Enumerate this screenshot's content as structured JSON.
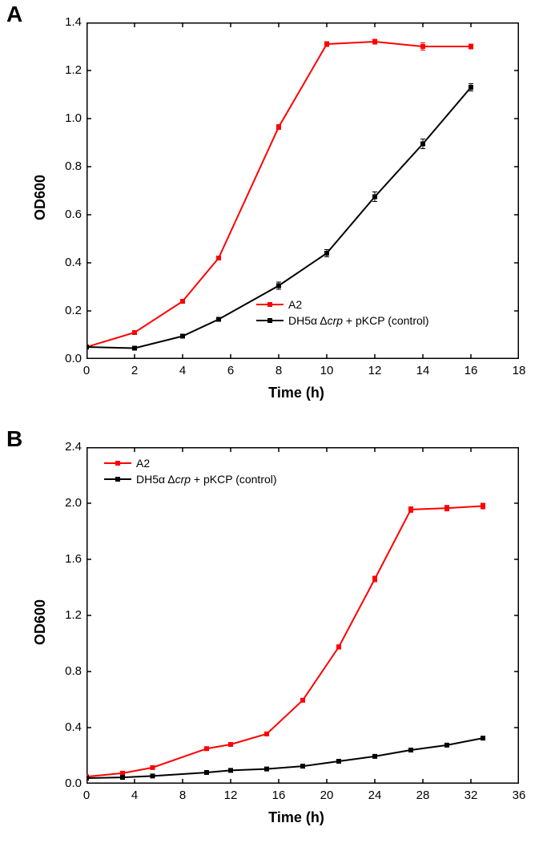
{
  "panelA": {
    "label": "A",
    "type": "line",
    "background_color": "#ffffff",
    "axis_color": "#000000",
    "axis_width": 1.5,
    "tick_length": 6,
    "tick_fontsize": 15,
    "label_fontsize": 18,
    "label_fontweight": "bold",
    "xlabel": "Time (h)",
    "ylabel": "OD600",
    "xlim": [
      0,
      18
    ],
    "ylim": [
      0.0,
      1.4
    ],
    "xticks": [
      0,
      2,
      4,
      6,
      8,
      10,
      12,
      14,
      16,
      18
    ],
    "yticks": [
      0.0,
      0.2,
      0.4,
      0.6,
      0.8,
      1.0,
      1.2,
      1.4
    ],
    "legend_position": "lower-right-inside",
    "series": [
      {
        "name": "A2",
        "label": "A2",
        "color": "#ff0000",
        "line_width": 2,
        "marker": "square",
        "marker_size": 6,
        "error_bar_color": "#ff0000",
        "x": [
          0,
          2,
          4,
          5.5,
          8,
          10,
          12,
          14,
          16
        ],
        "y": [
          0.05,
          0.11,
          0.24,
          0.42,
          0.965,
          1.31,
          1.32,
          1.3,
          1.3
        ],
        "yerr": [
          0.005,
          0.005,
          0.005,
          0.005,
          0.01,
          0.01,
          0.01,
          0.015,
          0.01
        ]
      },
      {
        "name": "control",
        "label": "DH5α Δcrp + pKCP (control)",
        "label_html": "DH5α Δ<i>crp</i> + pKCP (control)",
        "color": "#000000",
        "line_width": 2,
        "marker": "square",
        "marker_size": 6,
        "error_bar_color": "#000000",
        "x": [
          0,
          2,
          4,
          5.5,
          8,
          10,
          12,
          14,
          16
        ],
        "y": [
          0.05,
          0.045,
          0.095,
          0.165,
          0.305,
          0.44,
          0.675,
          0.895,
          1.13
        ],
        "yerr": [
          0.005,
          0.005,
          0.005,
          0.005,
          0.015,
          0.015,
          0.02,
          0.02,
          0.015
        ]
      }
    ]
  },
  "panelB": {
    "label": "B",
    "type": "line",
    "background_color": "#ffffff",
    "axis_color": "#000000",
    "axis_width": 1.5,
    "tick_length": 6,
    "tick_fontsize": 15,
    "label_fontsize": 18,
    "label_fontweight": "bold",
    "xlabel": "Time (h)",
    "ylabel": "OD600",
    "xlim": [
      0,
      36
    ],
    "ylim": [
      0.0,
      2.4
    ],
    "xticks": [
      0,
      4,
      8,
      12,
      16,
      20,
      24,
      28,
      32,
      36
    ],
    "yticks": [
      0.0,
      0.4,
      0.8,
      1.2,
      1.6,
      2.0,
      2.4
    ],
    "legend_position": "upper-left-inside",
    "series": [
      {
        "name": "A2",
        "label": "A2",
        "color": "#ff0000",
        "line_width": 2,
        "marker": "square",
        "marker_size": 6,
        "error_bar_color": "#ff0000",
        "x": [
          0,
          3,
          5.5,
          10,
          12,
          15,
          18,
          21,
          24,
          27,
          30,
          33
        ],
        "y": [
          0.05,
          0.075,
          0.115,
          0.25,
          0.28,
          0.355,
          0.595,
          0.975,
          1.46,
          1.955,
          1.965,
          1.98
        ],
        "yerr": [
          0.005,
          0.005,
          0.01,
          0.01,
          0.01,
          0.01,
          0.01,
          0.015,
          0.02,
          0.02,
          0.02,
          0.02
        ]
      },
      {
        "name": "control",
        "label": "DH5α Δcrp + pKCP (control)",
        "label_html": "DH5α Δ<i>crp</i> + pKCP (control)",
        "color": "#000000",
        "line_width": 2,
        "marker": "square",
        "marker_size": 6,
        "error_bar_color": "#000000",
        "x": [
          0,
          3,
          5.5,
          10,
          12,
          15,
          18,
          21,
          24,
          27,
          30,
          33
        ],
        "y": [
          0.04,
          0.045,
          0.055,
          0.08,
          0.095,
          0.105,
          0.125,
          0.16,
          0.195,
          0.24,
          0.275,
          0.325
        ],
        "yerr": [
          0.005,
          0.005,
          0.005,
          0.005,
          0.005,
          0.005,
          0.01,
          0.01,
          0.01,
          0.01,
          0.01,
          0.01
        ]
      }
    ]
  }
}
